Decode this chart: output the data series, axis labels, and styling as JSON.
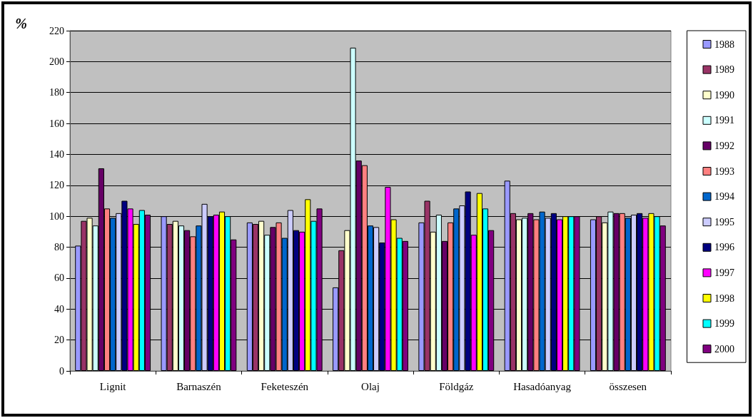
{
  "chart_data": {
    "type": "bar",
    "ylabel": "%",
    "categories": [
      "Lignit",
      "Barnaszén",
      "Feketeszén",
      "Olaj",
      "Földgáz",
      "Hasadóanyag",
      "összesen"
    ],
    "series": [
      {
        "name": "1988",
        "color": "#9999ff",
        "values": [
          81,
          100,
          96,
          54,
          96,
          123,
          98
        ]
      },
      {
        "name": "1989",
        "color": "#993366",
        "values": [
          97,
          95,
          95,
          78,
          110,
          102,
          100
        ]
      },
      {
        "name": "1990",
        "color": "#ffffcc",
        "values": [
          99,
          97,
          97,
          91,
          90,
          98,
          96
        ]
      },
      {
        "name": "1991",
        "color": "#ccffff",
        "values": [
          94,
          94,
          88,
          209,
          101,
          99,
          103
        ]
      },
      {
        "name": "1992",
        "color": "#660066",
        "values": [
          131,
          91,
          93,
          136,
          84,
          102,
          102
        ]
      },
      {
        "name": "1993",
        "color": "#ff8080",
        "values": [
          105,
          87,
          96,
          133,
          96,
          98,
          102
        ]
      },
      {
        "name": "1994",
        "color": "#0066cc",
        "values": [
          99,
          94,
          86,
          94,
          105,
          103,
          99
        ]
      },
      {
        "name": "1995",
        "color": "#ccccff",
        "values": [
          102,
          108,
          104,
          93,
          107,
          99,
          101
        ]
      },
      {
        "name": "1996",
        "color": "#000080",
        "values": [
          110,
          100,
          91,
          83,
          116,
          102,
          102
        ]
      },
      {
        "name": "1997",
        "color": "#ff00ff",
        "values": [
          105,
          101,
          90,
          119,
          88,
          98,
          99
        ]
      },
      {
        "name": "1998",
        "color": "#ffff00",
        "values": [
          95,
          103,
          111,
          98,
          115,
          100,
          102
        ]
      },
      {
        "name": "1999",
        "color": "#00ffff",
        "values": [
          104,
          100,
          97,
          86,
          105,
          100,
          100
        ]
      },
      {
        "name": "2000",
        "color": "#800080",
        "values": [
          101,
          85,
          105,
          84,
          91,
          100,
          94
        ]
      }
    ],
    "ylim": [
      0,
      220
    ],
    "yticks": [
      0,
      20,
      40,
      60,
      80,
      100,
      120,
      140,
      160,
      180,
      200,
      220
    ],
    "grid": "y",
    "legend": "right"
  }
}
